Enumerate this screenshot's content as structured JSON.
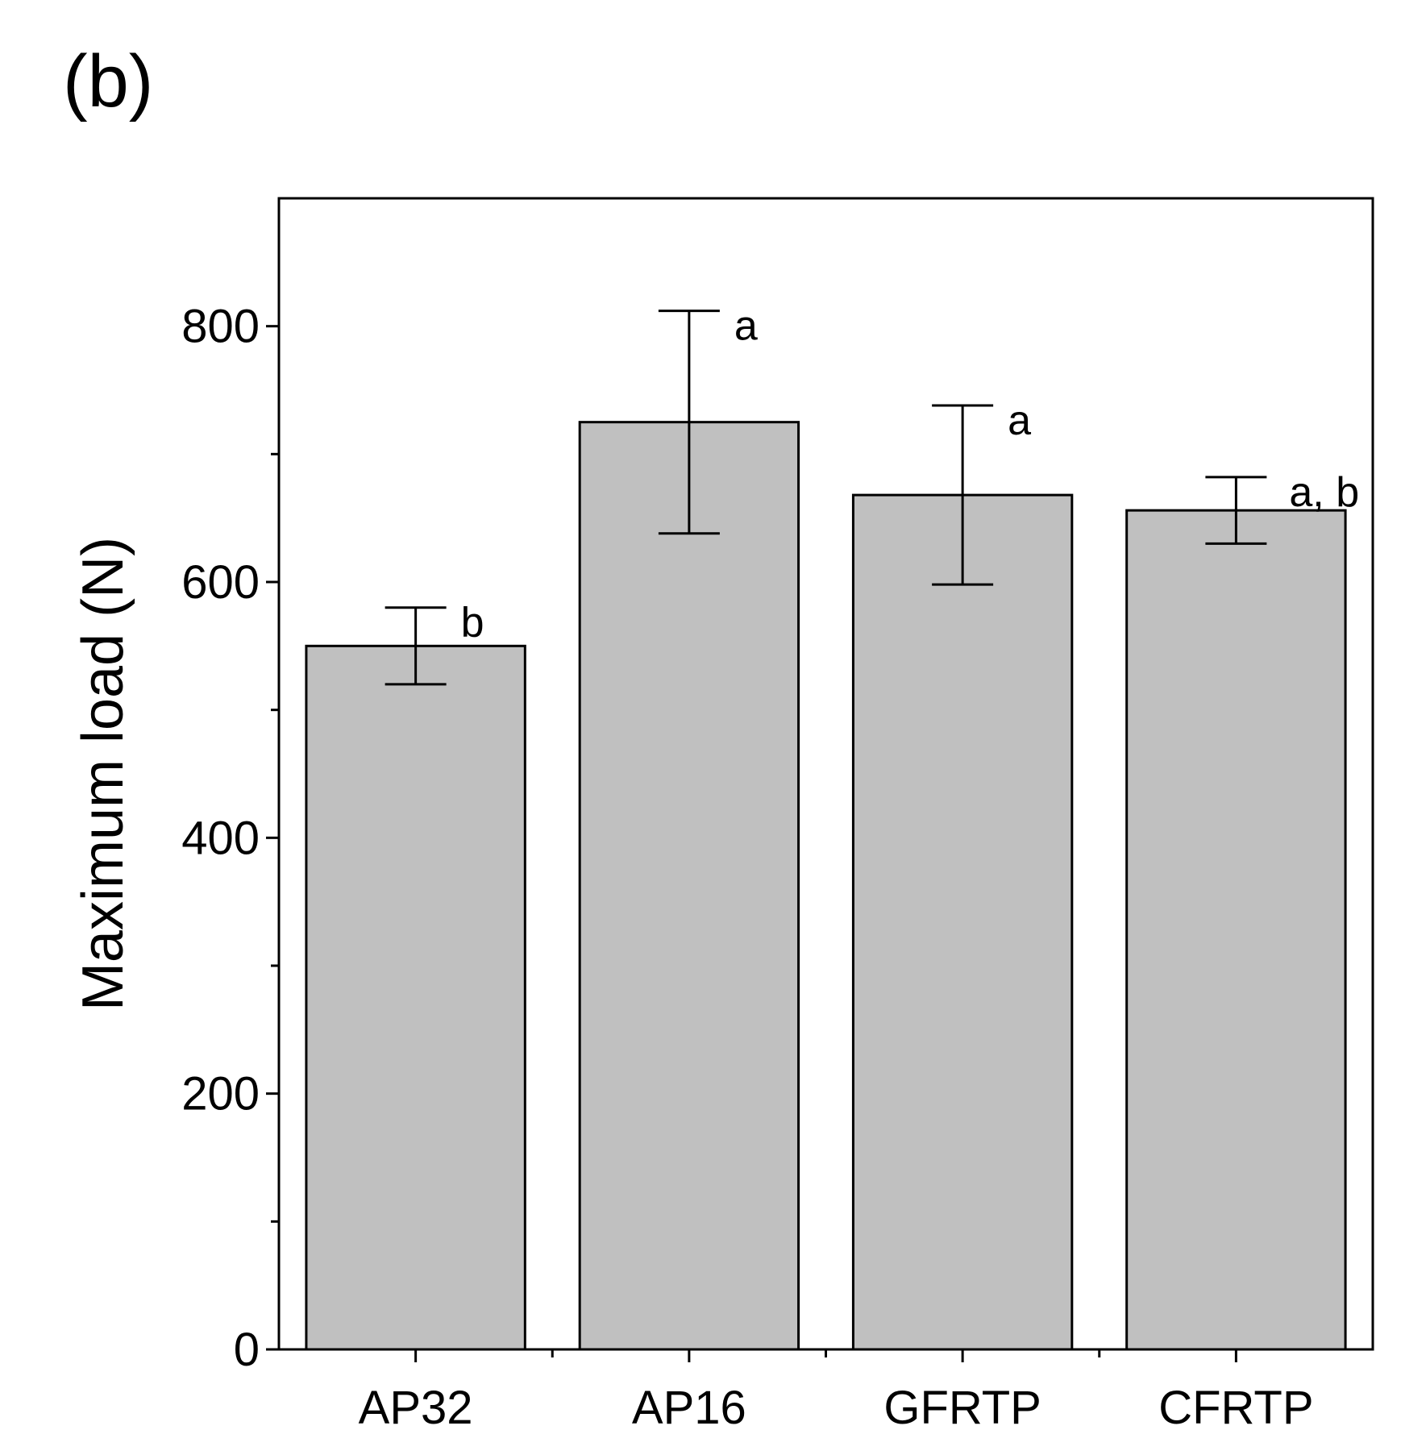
{
  "panel_label": "(b)",
  "chart_data": {
    "type": "bar",
    "title": "",
    "xlabel": "",
    "ylabel": "Maximum load (N)",
    "ylim": [
      0,
      900
    ],
    "yticks_major": [
      0,
      200,
      400,
      600,
      800
    ],
    "yticks_minor": [
      100,
      300,
      500,
      700
    ],
    "categories": [
      "AP32",
      "AP16",
      "GFRTP",
      "CFRTP"
    ],
    "values": [
      550,
      725,
      668,
      656
    ],
    "error": [
      30,
      87,
      70,
      26
    ],
    "significance": [
      "b",
      "a",
      "a",
      "a, b"
    ],
    "bar_color": "#c0c0c0",
    "edge_color": "#000000",
    "grid": false
  }
}
